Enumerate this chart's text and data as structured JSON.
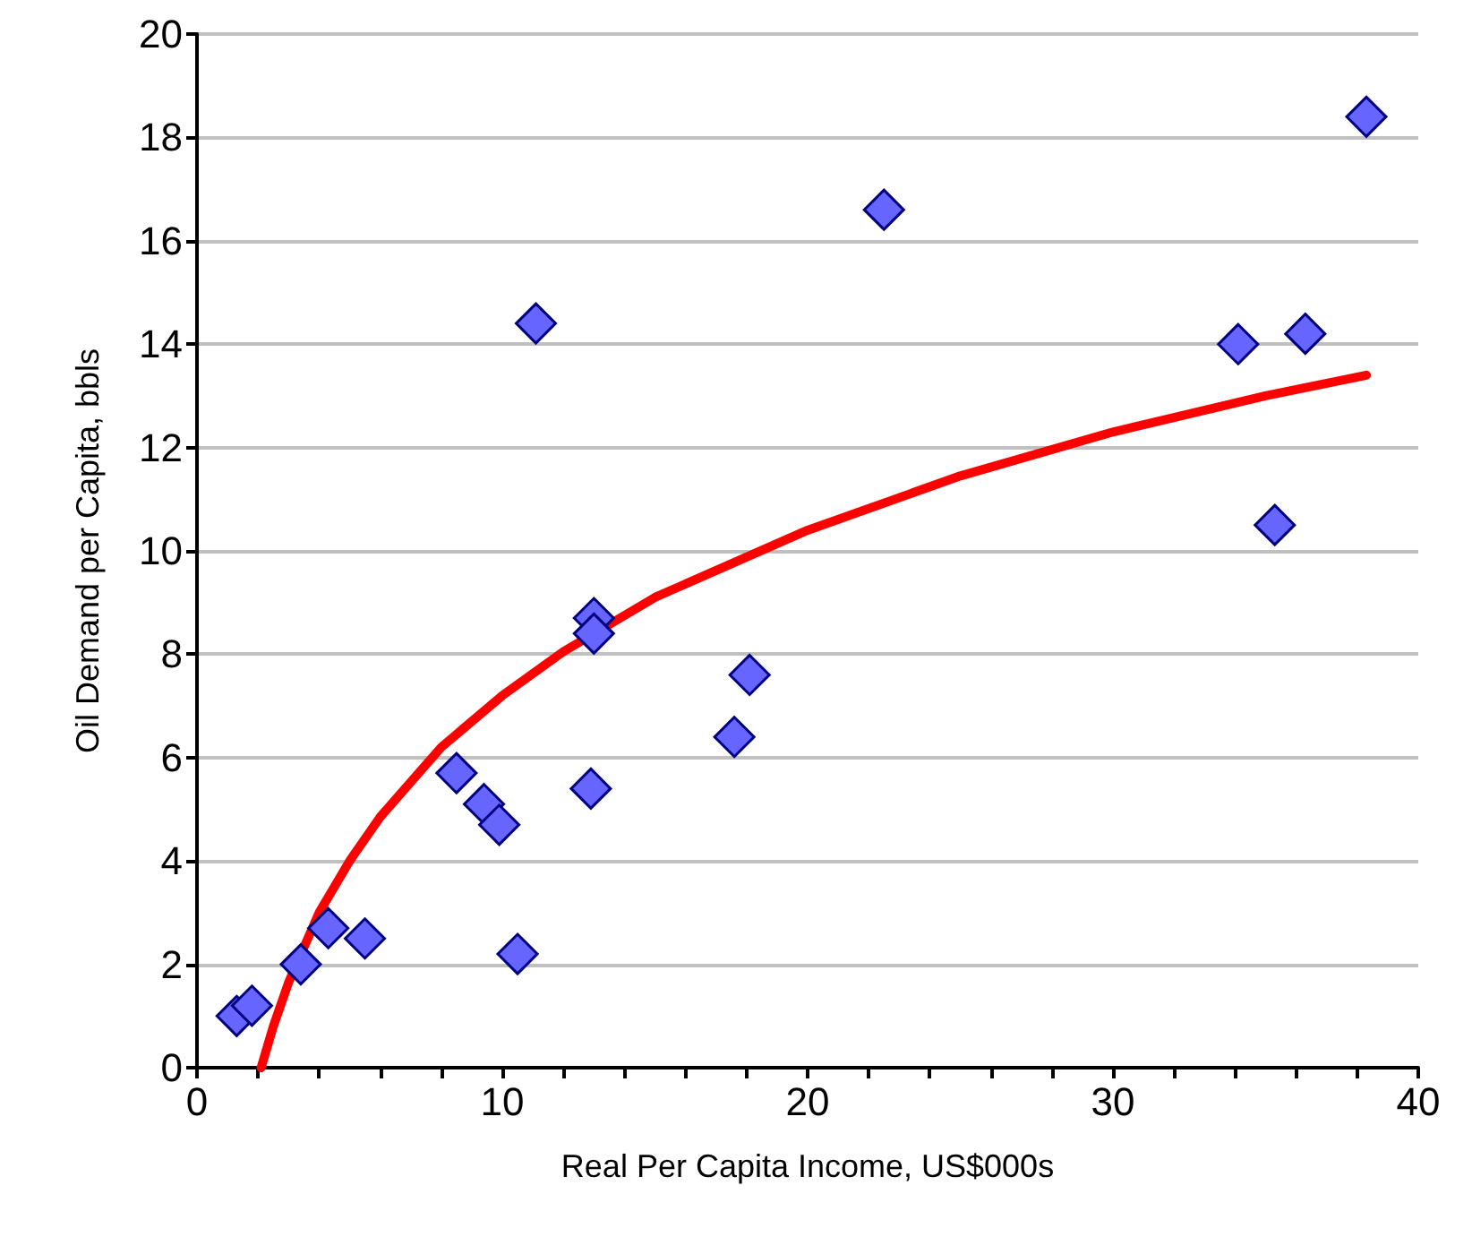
{
  "chart_data": {
    "type": "scatter",
    "xlabel": "Real Per Capita Income, US$000s",
    "ylabel": "Oil Demand per Capita, bbls",
    "xlim": [
      0,
      40
    ],
    "ylim": [
      0,
      20
    ],
    "xticks": [
      0,
      {
        "value": 2,
        "label": null
      },
      {
        "value": 4,
        "label": null
      },
      {
        "value": 6,
        "label": null
      },
      {
        "value": 8,
        "label": null
      },
      10,
      {
        "value": 12,
        "label": null
      },
      {
        "value": 14,
        "label": null
      },
      {
        "value": 16,
        "label": null
      },
      {
        "value": 18,
        "label": null
      },
      20,
      {
        "value": 22,
        "label": null
      },
      {
        "value": 24,
        "label": null
      },
      {
        "value": 26,
        "label": null
      },
      {
        "value": 28,
        "label": null
      },
      30,
      {
        "value": 32,
        "label": null
      },
      {
        "value": 34,
        "label": null
      },
      {
        "value": 36,
        "label": null
      },
      {
        "value": 38,
        "label": null
      },
      40
    ],
    "yticks": [
      0,
      2,
      4,
      6,
      8,
      10,
      12,
      14,
      16,
      18,
      20
    ],
    "grid": "y",
    "series": [
      {
        "color": "#6666ff",
        "marker": "diamond",
        "x": [
          1.3,
          1.8,
          3.4,
          4.3,
          5.5,
          8.5,
          9.4,
          9.9,
          10.5,
          11.1,
          13.0,
          13.0,
          12.9,
          17.6,
          18.1,
          22.5,
          34.1,
          36.3,
          35.3,
          38.3
        ],
        "values": [
          1.0,
          1.2,
          2.0,
          2.7,
          2.5,
          5.7,
          5.1,
          4.7,
          2.2,
          14.4,
          8.7,
          8.4,
          5.4,
          6.4,
          7.6,
          16.6,
          14.0,
          14.2,
          10.5,
          18.4
        ]
      },
      {
        "type": "line",
        "color": "#ff0000",
        "marker": "none",
        "line_style": "solid",
        "x": [
          2.1,
          2.5,
          3,
          4,
          5,
          6,
          8,
          10,
          12,
          15,
          20,
          25,
          30,
          35,
          38.3
        ],
        "values": [
          0,
          0.8,
          1.65,
          3.0,
          4.0,
          4.85,
          6.2,
          7.2,
          8.05,
          9.1,
          10.4,
          11.45,
          12.3,
          13.0,
          13.4
        ]
      }
    ]
  }
}
